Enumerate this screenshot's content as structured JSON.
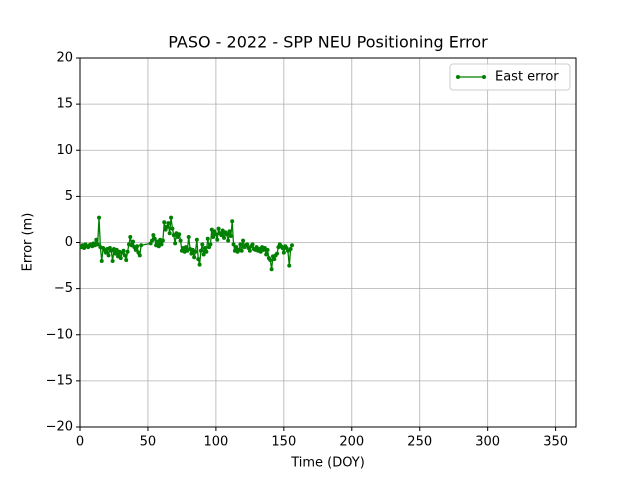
{
  "chart_data": {
    "type": "line",
    "title": "PASO - 2022 - SPP NEU Positioning Error",
    "xlabel": "Time (DOY)",
    "ylabel": "Error (m)",
    "x": [
      1,
      2,
      3,
      4,
      5,
      6,
      7,
      8,
      9,
      10,
      11,
      12,
      13,
      14,
      15,
      16,
      17,
      18,
      19,
      20,
      21,
      22,
      23,
      24,
      25,
      26,
      27,
      28,
      29,
      30,
      31,
      32,
      33,
      34,
      35,
      36,
      37,
      38,
      39,
      40,
      41,
      42,
      43,
      44,
      45,
      52,
      53,
      54,
      55,
      56,
      57,
      58,
      59,
      60,
      61,
      62,
      63,
      64,
      65,
      66,
      67,
      68,
      69,
      70,
      71,
      72,
      73,
      74,
      75,
      76,
      77,
      78,
      79,
      80,
      81,
      82,
      83,
      84,
      85,
      86,
      87,
      88,
      89,
      90,
      91,
      92,
      93,
      94,
      95,
      96,
      97,
      98,
      99,
      100,
      101,
      102,
      103,
      104,
      105,
      106,
      107,
      108,
      109,
      110,
      111,
      112,
      113,
      114,
      115,
      116,
      117,
      118,
      119,
      120,
      121,
      122,
      123,
      124,
      125,
      126,
      127,
      128,
      129,
      130,
      131,
      132,
      133,
      134,
      135,
      136,
      137,
      138,
      139,
      140,
      141,
      142,
      143,
      144,
      145,
      146,
      147,
      148,
      149,
      150,
      151,
      152,
      153,
      154,
      155,
      156
    ],
    "series": [
      {
        "name": "East error",
        "color": "green",
        "values": [
          -0.5,
          -0.3,
          -0.6,
          -0.2,
          -0.4,
          -0.5,
          -0.3,
          -0.2,
          -0.4,
          -0.1,
          -0.3,
          0.3,
          -0.2,
          2.7,
          -0.5,
          -2.0,
          -0.6,
          -0.8,
          -1.1,
          -0.7,
          -1.4,
          -0.6,
          -0.9,
          -2.0,
          -0.7,
          -1.2,
          -0.8,
          -1.5,
          -1.0,
          -1.7,
          -1.1,
          -0.9,
          -1.4,
          -1.9,
          -1.0,
          -0.2,
          0.6,
          -0.3,
          0.1,
          -0.5,
          -0.8,
          -0.4,
          -1.1,
          -1.4,
          -0.3,
          -0.1,
          0.2,
          0.8,
          0.4,
          -0.3,
          0.1,
          -0.4,
          0.3,
          -0.2,
          0.2,
          2.2,
          1.4,
          1.7,
          2.1,
          1.0,
          2.7,
          1.5,
          0.8,
          -0.1,
          1.0,
          0.6,
          0.9,
          0.2,
          -0.9,
          -0.6,
          -1.0,
          -0.5,
          -0.9,
          0.6,
          -0.7,
          -1.2,
          -0.8,
          -1.6,
          -1.0,
          0.3,
          -1.8,
          -2.4,
          -0.9,
          -0.2,
          -1.3,
          -0.6,
          -1.0,
          0.4,
          -0.5,
          -0.2,
          1.4,
          0.6,
          1.2,
          0.9,
          0.3,
          1.5,
          1.0,
          0.8,
          1.3,
          0.5,
          1.1,
          0.9,
          0.2,
          1.2,
          0.7,
          2.3,
          -0.2,
          -0.9,
          -0.5,
          -1.0,
          -0.8,
          -0.2,
          -0.9,
          0.2,
          -0.5,
          -0.3,
          -0.2,
          -0.6,
          -0.9,
          -0.4,
          -0.2,
          -0.7,
          -0.8,
          -0.5,
          -0.9,
          -0.7,
          -1.0,
          -0.5,
          -0.8,
          -0.6,
          -1.3,
          -0.8,
          -1.7,
          -1.9,
          -2.9,
          -1.5,
          -1.8,
          -1.4,
          -1.2,
          -0.5,
          -0.2,
          -0.4,
          -0.6,
          -1.1,
          -0.4,
          -0.6,
          -0.9,
          -2.5,
          -0.7,
          -0.3
        ]
      }
    ],
    "xlim": [
      0,
      365
    ],
    "xticks": [
      0,
      50,
      100,
      150,
      200,
      250,
      300,
      350
    ],
    "ylim": [
      -20,
      20
    ],
    "yticks": [
      {
        "value": -20,
        "label": "−20"
      },
      {
        "value": -15,
        "label": "−15"
      },
      {
        "value": -10,
        "label": "−10"
      },
      {
        "value": -5,
        "label": "−5"
      },
      0,
      5,
      10,
      15,
      20
    ],
    "grid": true,
    "legend": "upper right"
  }
}
